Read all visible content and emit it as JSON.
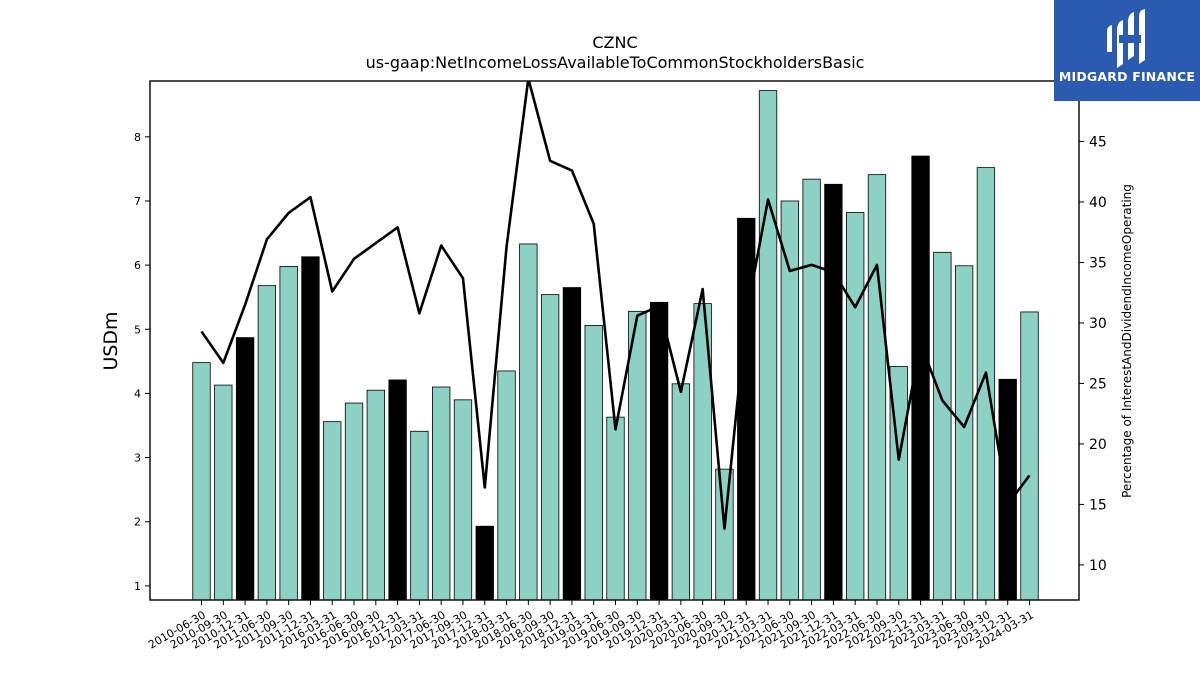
{
  "brand": {
    "name": "MIDGARD FINANCE",
    "color": "#2b5bb0"
  },
  "chart_data": {
    "type": "bar",
    "title": "CZNC",
    "subtitle": "us-gaap:NetIncomeLossAvailableToCommonStockholdersBasic",
    "ylabel": "USDm",
    "y2label": "Percentage of InterestAndDividendIncomeOperating",
    "ylim": [
      0.78,
      8.87
    ],
    "y2lim": [
      7.1,
      50.0
    ],
    "yticks": [
      1,
      2,
      3,
      4,
      5,
      6,
      7,
      8
    ],
    "y2ticks": [
      10,
      15,
      20,
      25,
      30,
      35,
      40,
      45
    ],
    "colors": {
      "bar": "#8dd1c5",
      "bar_q4": "#000000",
      "line": "#000000"
    },
    "categories": [
      "2010-06-30",
      "2010-09-30",
      "2010-12-31",
      "2011-06-30",
      "2011-09-30",
      "2011-12-31",
      "2016-03-31",
      "2016-06-30",
      "2016-09-30",
      "2016-12-31",
      "2017-03-31",
      "2017-06-30",
      "2017-09-30",
      "2017-12-31",
      "2018-03-31",
      "2018-06-30",
      "2018-09-30",
      "2018-12-31",
      "2019-03-31",
      "2019-06-30",
      "2019-09-30",
      "2019-12-31",
      "2020-03-31",
      "2020-06-30",
      "2020-09-30",
      "2020-12-31",
      "2021-03-31",
      "2021-06-30",
      "2021-09-30",
      "2021-12-31",
      "2022-03-31",
      "2022-06-30",
      "2022-09-30",
      "2022-12-31",
      "2023-03-31",
      "2023-06-30",
      "2023-09-30",
      "2023-12-31",
      "2024-03-31"
    ],
    "series": [
      {
        "type": "bar",
        "values": [
          4.48,
          4.13,
          4.87,
          5.68,
          5.98,
          6.13,
          3.56,
          3.85,
          4.05,
          4.21,
          3.41,
          4.1,
          3.9,
          1.93,
          4.35,
          6.33,
          5.54,
          5.65,
          5.06,
          3.63,
          5.28,
          5.42,
          4.15,
          5.4,
          2.82,
          6.73,
          8.72,
          7.0,
          7.34,
          7.26,
          6.82,
          7.41,
          4.42,
          7.7,
          6.2,
          5.99,
          7.52,
          4.22,
          5.27
        ],
        "highlight": [
          false,
          false,
          true,
          false,
          false,
          true,
          false,
          false,
          false,
          true,
          false,
          false,
          false,
          true,
          false,
          false,
          false,
          true,
          false,
          false,
          false,
          true,
          false,
          false,
          false,
          true,
          false,
          false,
          false,
          true,
          false,
          false,
          false,
          true,
          false,
          false,
          false,
          true,
          false
        ]
      },
      {
        "type": "line",
        "axis": "right",
        "values": [
          29.3,
          26.7,
          31.5,
          36.9,
          39.1,
          40.4,
          32.6,
          35.3,
          36.6,
          37.9,
          30.8,
          36.4,
          33.7,
          16.4,
          36.3,
          50.2,
          43.4,
          42.6,
          38.2,
          21.2,
          30.6,
          31.4,
          24.3,
          32.8,
          13.0,
          30.6,
          40.2,
          34.3,
          34.8,
          34.2,
          31.3,
          34.8,
          18.7,
          28.3,
          23.6,
          21.4,
          25.9,
          15.0,
          17.4
        ]
      }
    ]
  }
}
